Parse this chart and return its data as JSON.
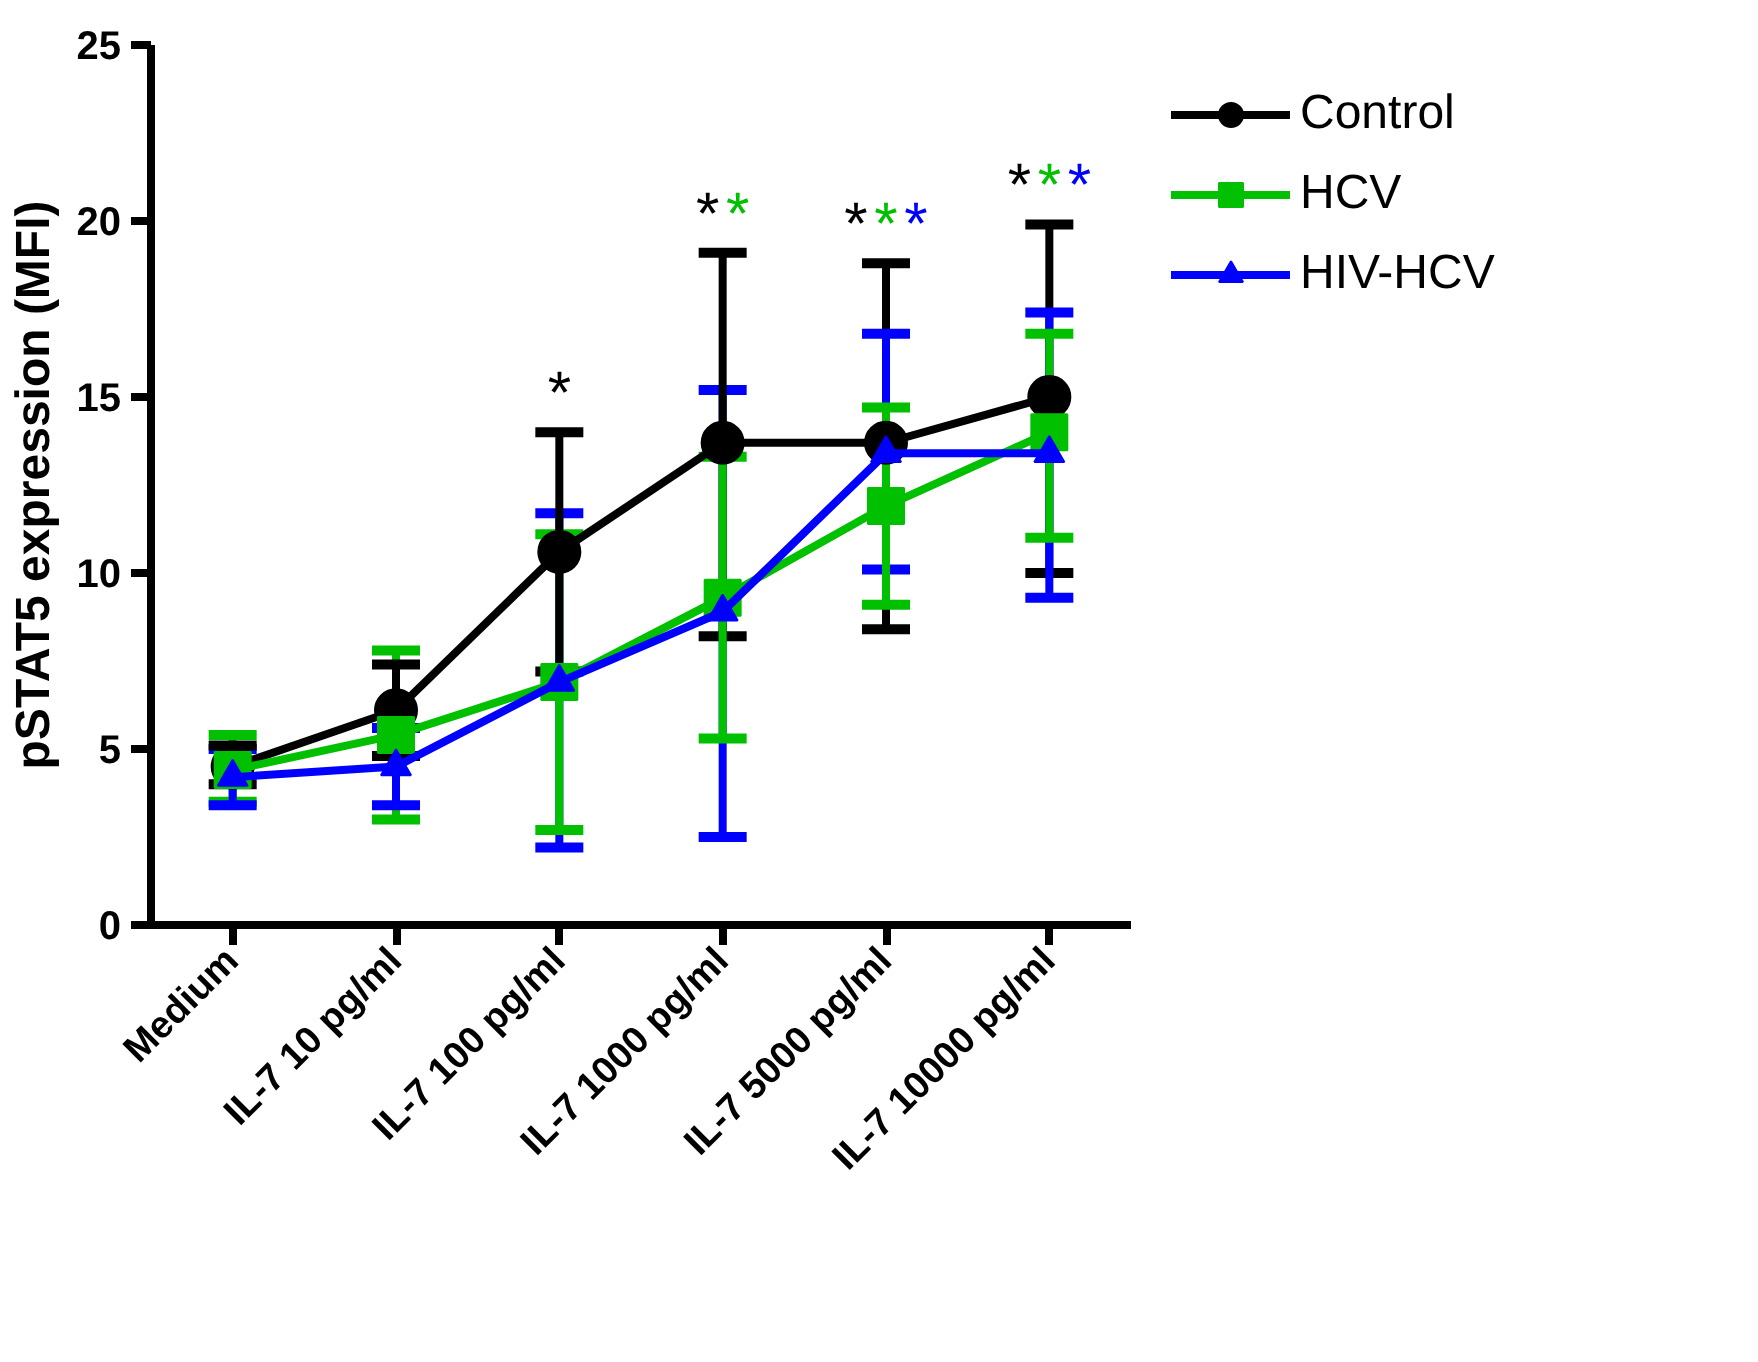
{
  "chart_data": {
    "type": "line",
    "ylabel": "pSTAT5 expression (MFI)",
    "categories": [
      "Medium",
      "IL-7 10 pg/ml",
      "IL-7 100 pg/ml",
      "IL-7 1000 pg/ml",
      "IL-7 5000 pg/ml",
      "IL-7 10000 pg/ml"
    ],
    "ylim": [
      0,
      25
    ],
    "yticks": [
      0,
      5,
      10,
      15,
      20,
      25
    ],
    "grid": false,
    "legend": "top right",
    "line_style": "solid",
    "series": [
      {
        "name": "Control",
        "color": "#000000",
        "marker": "circle",
        "values": [
          4.5,
          6.1,
          10.6,
          13.7,
          13.7,
          15.0
        ],
        "errors": [
          [
            4.0,
            5.1
          ],
          [
            4.8,
            7.4
          ],
          3.4,
          [
            8.2,
            19.1
          ],
          [
            8.4,
            18.8
          ],
          [
            10.0,
            19.9
          ]
        ]
      },
      {
        "name": "HCV",
        "color": "#00c000",
        "marker": "square",
        "values": [
          4.4,
          5.4,
          6.9,
          9.3,
          11.9,
          14.0
        ],
        "errors": [
          [
            3.5,
            5.4
          ],
          [
            3.0,
            7.8
          ],
          [
            2.7,
            11.1
          ],
          4.0,
          [
            9.1,
            14.7
          ],
          [
            11.0,
            16.8
          ]
        ]
      },
      {
        "name": "HIV-HCV",
        "color": "#0000ff",
        "marker": "triangle",
        "values": [
          4.2,
          4.5,
          6.9,
          8.9,
          13.4,
          13.4
        ],
        "errors": [
          [
            3.4,
            5.0
          ],
          1.1,
          [
            2.2,
            11.7
          ],
          [
            2.5,
            15.2
          ],
          [
            10.1,
            16.8
          ],
          [
            9.3,
            17.4
          ]
        ]
      }
    ],
    "annotations": [
      "*",
      "**",
      "***",
      "***"
    ]
  }
}
